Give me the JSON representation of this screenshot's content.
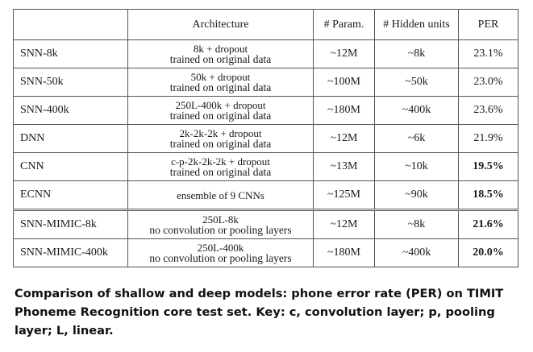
{
  "table": {
    "headers": [
      "",
      "Architecture",
      "# Param.",
      "# Hidden units",
      "PER"
    ],
    "rows": [
      {
        "model": "SNN-8k",
        "arch_line1": "8k + dropout",
        "arch_line2": "trained on original data",
        "params": "~12M",
        "hidden": "~8k",
        "per": "23.1%",
        "per_bold": false
      },
      {
        "model": "SNN-50k",
        "arch_line1": "50k + dropout",
        "arch_line2": "trained on original data",
        "params": "~100M",
        "hidden": "~50k",
        "per": "23.0%",
        "per_bold": false
      },
      {
        "model": "SNN-400k",
        "arch_line1": "250L-400k + dropout",
        "arch_line2": "trained on original data",
        "params": "~180M",
        "hidden": "~400k",
        "per": "23.6%",
        "per_bold": false
      },
      {
        "model": "DNN",
        "arch_line1": "2k-2k-2k + dropout",
        "arch_line2": "trained on original data",
        "params": "~12M",
        "hidden": "~6k",
        "per": "21.9%",
        "per_bold": false
      },
      {
        "model": "CNN",
        "arch_line1": "c-p-2k-2k-2k + dropout",
        "arch_line2": "trained on original data",
        "params": "~13M",
        "hidden": "~10k",
        "per": "19.5%",
        "per_bold": true
      },
      {
        "model": "ECNN",
        "arch_line1": "ensemble of 9 CNNs",
        "arch_line2": "",
        "params": "~125M",
        "hidden": "~90k",
        "per": "18.5%",
        "per_bold": true
      },
      {
        "model": "SNN-MIMIC-8k",
        "arch_line1": "250L-8k",
        "arch_line2": "no convolution or pooling layers",
        "params": "~12M",
        "hidden": "~8k",
        "per": "21.6%",
        "per_bold": true
      },
      {
        "model": "SNN-MIMIC-400k",
        "arch_line1": "250L-400k",
        "arch_line2": "no convolution or pooling layers",
        "params": "~180M",
        "hidden": "~400k",
        "per": "20.0%",
        "per_bold": true
      }
    ]
  },
  "caption": "Comparison of shallow and deep models: phone error rate (PER) on TIMIT Phoneme Recognition core test set. Key: c, convolution layer; p, pooling layer; L, linear."
}
